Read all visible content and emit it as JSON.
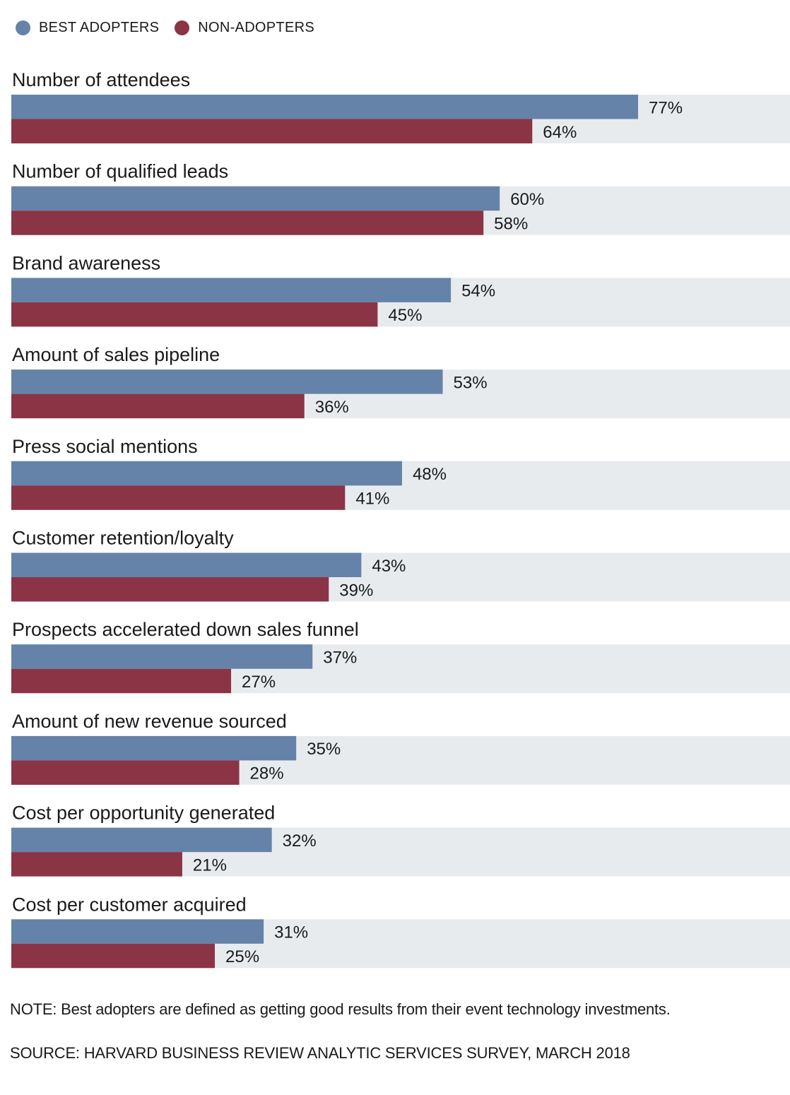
{
  "chart_data": {
    "type": "bar",
    "orientation": "horizontal",
    "categories": [
      "Number of attendees",
      "Number of qualified leads",
      "Brand awareness",
      "Amount of sales pipeline",
      "Press social mentions",
      "Customer retention/loyalty",
      "Prospects accelerated down sales funnel",
      "Amount of new revenue sourced",
      "Cost per opportunity generated",
      "Cost per customer acquired"
    ],
    "series": [
      {
        "name": "BEST ADOPTERS",
        "color": "#6583a8",
        "values": [
          77,
          60,
          54,
          53,
          48,
          43,
          37,
          35,
          32,
          31
        ]
      },
      {
        "name": "NON-ADOPTERS",
        "color": "#8b3446",
        "values": [
          64,
          58,
          45,
          36,
          41,
          39,
          27,
          28,
          21,
          25
        ]
      }
    ],
    "value_suffix": "%",
    "xlim": [
      0,
      100
    ],
    "track_color": "#e8ebee",
    "legend_position": "top-left"
  },
  "note": "NOTE: Best adopters are defined as getting good results from their event technology investments.",
  "source": "SOURCE: HARVARD BUSINESS REVIEW ANALYTIC SERVICES SURVEY, MARCH 2018"
}
